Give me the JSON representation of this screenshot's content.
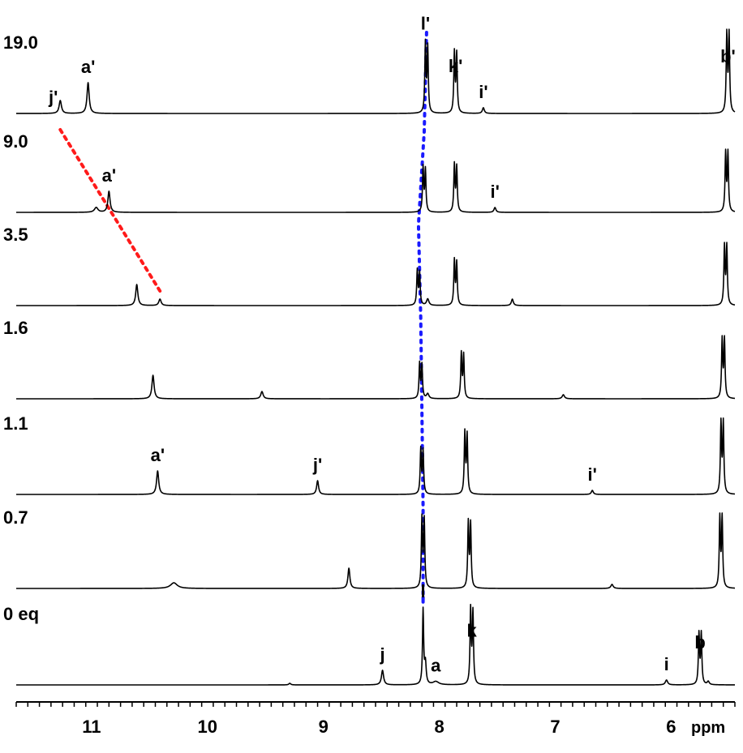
{
  "chart_data": {
    "type": "line",
    "title": "",
    "xlabel": "ppm",
    "ylabel": "",
    "x_reversed": true,
    "xlim": [
      11.65,
      5.45
    ],
    "x_ticks": [
      11,
      10,
      9,
      8,
      7,
      6
    ],
    "x_minor_step": 0.1,
    "grid": false,
    "colors": {
      "trace": "#000000",
      "guide_blue": "#1a1aff",
      "guide_red": "#ff1a1a"
    },
    "series": [
      {
        "name": "19.0",
        "peaks": [
          {
            "x": 11.27,
            "h": 0.16,
            "w": 0.012
          },
          {
            "x": 11.03,
            "h": 0.38,
            "w": 0.011
          },
          {
            "x": 8.12,
            "h": 0.85,
            "w": 0.006
          },
          {
            "x": 8.1,
            "h": 0.8,
            "w": 0.006
          },
          {
            "x": 7.87,
            "h": 0.74,
            "w": 0.006
          },
          {
            "x": 7.85,
            "h": 0.72,
            "w": 0.006
          },
          {
            "x": 7.62,
            "h": 0.07,
            "w": 0.01
          },
          {
            "x": 5.52,
            "h": 0.96,
            "w": 0.006
          },
          {
            "x": 5.5,
            "h": 0.96,
            "w": 0.006
          }
        ],
        "labels": [
          {
            "text": "j'",
            "x": 11.33
          },
          {
            "text": "a'",
            "x": 11.03
          },
          {
            "text": "l'",
            "x": 8.12
          },
          {
            "text": "k'",
            "x": 7.86
          },
          {
            "text": "i'",
            "x": 7.62
          },
          {
            "text": "b'",
            "x": 5.51
          }
        ]
      },
      {
        "name": "9.0",
        "peaks": [
          {
            "x": 10.96,
            "h": 0.06,
            "w": 0.018
          },
          {
            "x": 10.85,
            "h": 0.26,
            "w": 0.011
          },
          {
            "x": 8.14,
            "h": 0.55,
            "w": 0.006
          },
          {
            "x": 8.12,
            "h": 0.52,
            "w": 0.006
          },
          {
            "x": 7.87,
            "h": 0.58,
            "w": 0.006
          },
          {
            "x": 7.85,
            "h": 0.55,
            "w": 0.006
          },
          {
            "x": 7.52,
            "h": 0.06,
            "w": 0.01
          },
          {
            "x": 5.53,
            "h": 0.72,
            "w": 0.006
          },
          {
            "x": 5.51,
            "h": 0.72,
            "w": 0.006
          }
        ],
        "labels": [
          {
            "text": "a'",
            "x": 10.85
          },
          {
            "text": "i'",
            "x": 7.52
          }
        ]
      },
      {
        "name": "3.5",
        "peaks": [
          {
            "x": 10.61,
            "h": 0.26,
            "w": 0.011
          },
          {
            "x": 10.41,
            "h": 0.08,
            "w": 0.012
          },
          {
            "x": 8.19,
            "h": 0.43,
            "w": 0.006
          },
          {
            "x": 8.17,
            "h": 0.4,
            "w": 0.006
          },
          {
            "x": 8.1,
            "h": 0.08,
            "w": 0.012
          },
          {
            "x": 7.87,
            "h": 0.55,
            "w": 0.006
          },
          {
            "x": 7.85,
            "h": 0.52,
            "w": 0.006
          },
          {
            "x": 7.37,
            "h": 0.08,
            "w": 0.01
          },
          {
            "x": 5.54,
            "h": 0.72,
            "w": 0.006
          },
          {
            "x": 5.52,
            "h": 0.72,
            "w": 0.006
          }
        ],
        "labels": []
      },
      {
        "name": "1.6",
        "peaks": [
          {
            "x": 10.47,
            "h": 0.29,
            "w": 0.011
          },
          {
            "x": 9.53,
            "h": 0.09,
            "w": 0.012
          },
          {
            "x": 8.17,
            "h": 0.43,
            "w": 0.006
          },
          {
            "x": 8.15,
            "h": 0.41,
            "w": 0.006
          },
          {
            "x": 8.1,
            "h": 0.06,
            "w": 0.012
          },
          {
            "x": 7.81,
            "h": 0.55,
            "w": 0.006
          },
          {
            "x": 7.79,
            "h": 0.53,
            "w": 0.006
          },
          {
            "x": 6.93,
            "h": 0.05,
            "w": 0.012
          },
          {
            "x": 5.56,
            "h": 0.72,
            "w": 0.006
          },
          {
            "x": 5.54,
            "h": 0.72,
            "w": 0.006
          }
        ],
        "labels": []
      },
      {
        "name": "1.1",
        "peaks": [
          {
            "x": 10.43,
            "h": 0.29,
            "w": 0.011
          },
          {
            "x": 9.05,
            "h": 0.17,
            "w": 0.01
          },
          {
            "x": 8.16,
            "h": 0.55,
            "w": 0.006
          },
          {
            "x": 8.14,
            "h": 0.53,
            "w": 0.006
          },
          {
            "x": 7.78,
            "h": 0.75,
            "w": 0.006
          },
          {
            "x": 7.76,
            "h": 0.72,
            "w": 0.006
          },
          {
            "x": 6.68,
            "h": 0.05,
            "w": 0.01
          },
          {
            "x": 5.57,
            "h": 0.87,
            "w": 0.006
          },
          {
            "x": 5.55,
            "h": 0.87,
            "w": 0.006
          }
        ],
        "labels": [
          {
            "text": "a'",
            "x": 10.43
          },
          {
            "text": "j'",
            "x": 9.05
          },
          {
            "text": "i'",
            "x": 6.68
          }
        ]
      },
      {
        "name": "0.7",
        "peaks": [
          {
            "x": 10.29,
            "h": 0.07,
            "w": 0.035
          },
          {
            "x": 8.78,
            "h": 0.25,
            "w": 0.01
          },
          {
            "x": 8.15,
            "h": 0.85,
            "w": 0.006
          },
          {
            "x": 8.13,
            "h": 0.83,
            "w": 0.006
          },
          {
            "x": 7.75,
            "h": 0.8,
            "w": 0.006
          },
          {
            "x": 7.73,
            "h": 0.78,
            "w": 0.006
          },
          {
            "x": 6.51,
            "h": 0.05,
            "w": 0.012
          },
          {
            "x": 5.58,
            "h": 0.86,
            "w": 0.006
          },
          {
            "x": 5.56,
            "h": 0.86,
            "w": 0.006
          }
        ],
        "labels": []
      },
      {
        "name": "0 eq",
        "peaks": [
          {
            "x": 9.29,
            "h": 0.02,
            "w": 0.01
          },
          {
            "x": 8.49,
            "h": 0.18,
            "w": 0.011
          },
          {
            "x": 8.14,
            "h": 0.92,
            "w": 0.006
          },
          {
            "x": 8.12,
            "h": 0.26,
            "w": 0.008
          },
          {
            "x": 8.03,
            "h": 0.04,
            "w": 0.03
          },
          {
            "x": 7.73,
            "h": 0.92,
            "w": 0.006
          },
          {
            "x": 7.71,
            "h": 0.88,
            "w": 0.006
          },
          {
            "x": 6.04,
            "h": 0.06,
            "w": 0.012
          },
          {
            "x": 5.76,
            "h": 0.62,
            "w": 0.006
          },
          {
            "x": 5.74,
            "h": 0.62,
            "w": 0.006
          },
          {
            "x": 5.68,
            "h": 0.04,
            "w": 0.01
          }
        ],
        "labels": [
          {
            "text": "j",
            "x": 8.49
          },
          {
            "text": "l",
            "x": 8.14
          },
          {
            "text": "a",
            "x": 8.03
          },
          {
            "text": "k",
            "x": 7.72
          },
          {
            "text": "i",
            "x": 6.04
          },
          {
            "text": "b",
            "x": 5.75
          }
        ]
      }
    ]
  }
}
